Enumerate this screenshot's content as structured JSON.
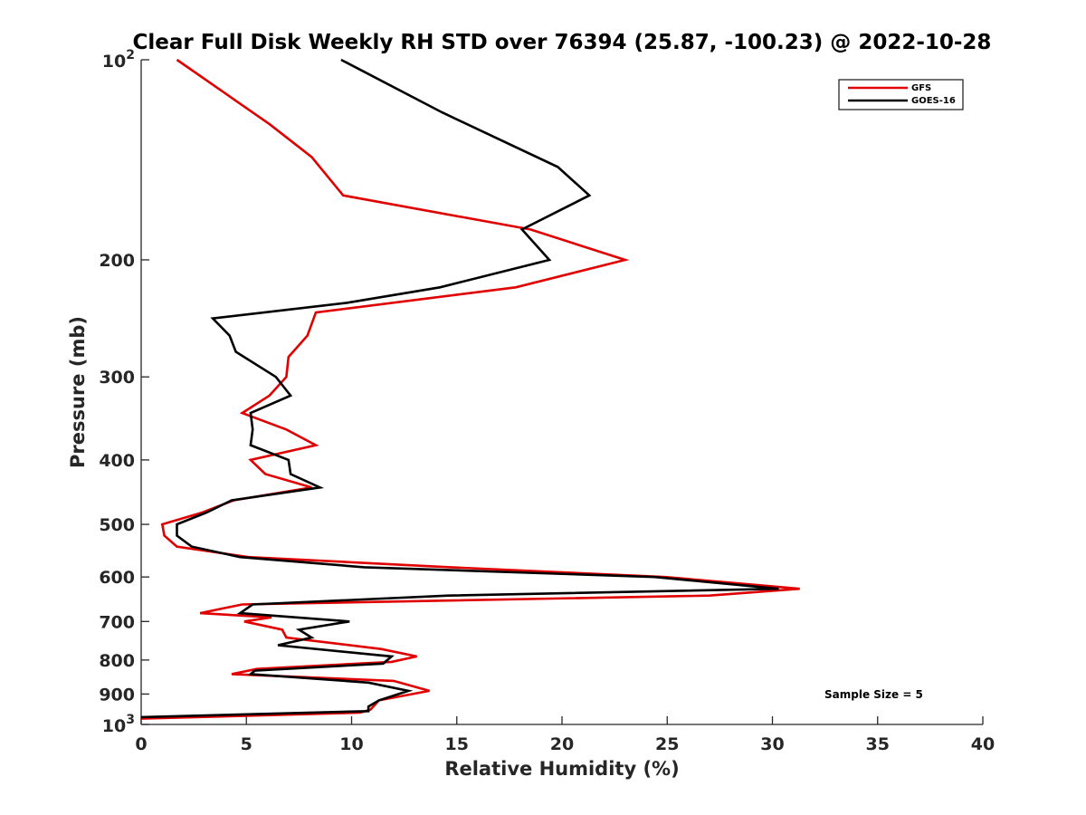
{
  "chart_data": {
    "type": "line",
    "title": "Clear Full Disk Weekly RH STD over 76394 (25.87, -100.23) @ 2022-10-28",
    "xlabel": "Relative Humidity (%)",
    "ylabel": "Pressure (mb)",
    "xlim": [
      0,
      40
    ],
    "ylim": [
      100,
      1000
    ],
    "yscale": "log",
    "y_reversed": true,
    "grid": false,
    "legend_position": "top-right",
    "x_ticks": [
      "0",
      "5",
      "10",
      "15",
      "20",
      "25",
      "30",
      "35",
      "40"
    ],
    "y_ticks": [
      {
        "value": 100,
        "base": "10",
        "exp": "2"
      },
      {
        "value": 200,
        "label": "200"
      },
      {
        "value": 300,
        "label": "300"
      },
      {
        "value": 400,
        "label": "400"
      },
      {
        "value": 500,
        "label": "500"
      },
      {
        "value": 600,
        "label": "600"
      },
      {
        "value": 700,
        "label": "700"
      },
      {
        "value": 800,
        "label": "800"
      },
      {
        "value": 900,
        "label": "900"
      },
      {
        "value": 1000,
        "base": "10",
        "exp": "3"
      }
    ],
    "annotation": "Sample Size = 5",
    "series": [
      {
        "name": "GFS",
        "color": "#e00000",
        "points": [
          [
            1.7,
            100
          ],
          [
            6.1,
            125
          ],
          [
            8.1,
            140
          ],
          [
            9.6,
            160
          ],
          [
            18.5,
            180
          ],
          [
            23.0,
            200
          ],
          [
            17.8,
            220
          ],
          [
            8.3,
            240
          ],
          [
            7.9,
            260
          ],
          [
            7.0,
            280
          ],
          [
            6.9,
            300
          ],
          [
            6.1,
            320
          ],
          [
            4.8,
            340
          ],
          [
            6.9,
            360
          ],
          [
            8.3,
            380
          ],
          [
            5.2,
            400
          ],
          [
            5.9,
            420
          ],
          [
            8.1,
            440
          ],
          [
            4.4,
            460
          ],
          [
            2.9,
            480
          ],
          [
            1.0,
            500
          ],
          [
            1.1,
            520
          ],
          [
            1.7,
            540
          ],
          [
            5.1,
            560
          ],
          [
            14.7,
            580
          ],
          [
            24.9,
            600
          ],
          [
            27.5,
            610
          ],
          [
            31.3,
            625
          ],
          [
            27.0,
            640
          ],
          [
            4.8,
            660
          ],
          [
            2.8,
            680
          ],
          [
            6.2,
            690
          ],
          [
            4.9,
            700
          ],
          [
            6.7,
            720
          ],
          [
            6.9,
            740
          ],
          [
            11.4,
            770
          ],
          [
            13.1,
            790
          ],
          [
            11.9,
            805
          ],
          [
            5.5,
            825
          ],
          [
            4.3,
            840
          ],
          [
            12.0,
            860
          ],
          [
            13.7,
            890
          ],
          [
            11.3,
            920
          ],
          [
            10.9,
            950
          ],
          [
            10.4,
            960
          ],
          [
            0.0,
            980
          ]
        ]
      },
      {
        "name": "GOES-16",
        "color": "#000000",
        "points": [
          [
            9.5,
            100
          ],
          [
            14.3,
            120
          ],
          [
            19.8,
            145
          ],
          [
            21.3,
            160
          ],
          [
            18.1,
            180
          ],
          [
            19.4,
            200
          ],
          [
            14.2,
            220
          ],
          [
            9.8,
            232
          ],
          [
            3.4,
            245
          ],
          [
            4.2,
            260
          ],
          [
            4.5,
            275
          ],
          [
            6.4,
            300
          ],
          [
            7.1,
            320
          ],
          [
            5.2,
            340
          ],
          [
            5.3,
            360
          ],
          [
            5.2,
            380
          ],
          [
            7.0,
            400
          ],
          [
            7.1,
            420
          ],
          [
            8.5,
            440
          ],
          [
            4.3,
            460
          ],
          [
            3.1,
            480
          ],
          [
            1.7,
            500
          ],
          [
            1.7,
            520
          ],
          [
            2.4,
            540
          ],
          [
            4.7,
            560
          ],
          [
            10.6,
            580
          ],
          [
            24.4,
            600
          ],
          [
            30.3,
            625
          ],
          [
            14.6,
            640
          ],
          [
            5.3,
            660
          ],
          [
            4.7,
            680
          ],
          [
            9.9,
            700
          ],
          [
            7.5,
            720
          ],
          [
            8.1,
            740
          ],
          [
            6.5,
            760
          ],
          [
            11.9,
            790
          ],
          [
            11.5,
            810
          ],
          [
            5.4,
            830
          ],
          [
            5.2,
            840
          ],
          [
            10.8,
            865
          ],
          [
            12.7,
            890
          ],
          [
            11.3,
            920
          ],
          [
            10.8,
            940
          ],
          [
            10.8,
            955
          ],
          [
            0.0,
            975
          ]
        ]
      }
    ]
  }
}
